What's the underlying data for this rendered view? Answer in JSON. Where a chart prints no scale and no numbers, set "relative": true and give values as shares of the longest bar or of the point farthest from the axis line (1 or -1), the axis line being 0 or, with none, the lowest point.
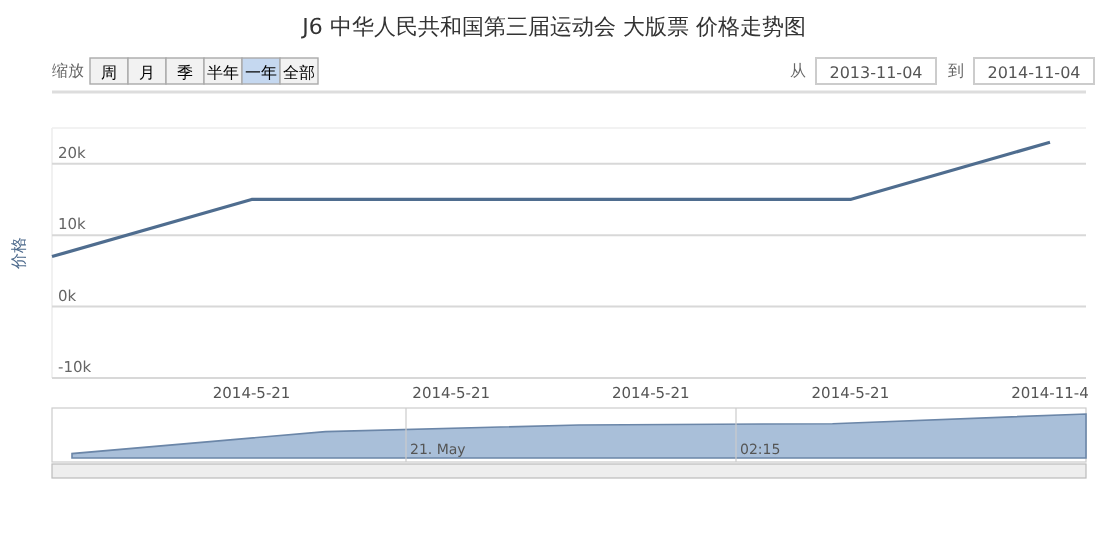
{
  "chart_data": [
    {
      "type": "line",
      "title": "J6 中华人民共和国第三届运动会 大版票 价格走势图",
      "ylabel": "价格",
      "categories": [
        null,
        "2014-5-21",
        "2014-5-21",
        "2014-5-21",
        "2014-5-21",
        "2014-11-4"
      ],
      "series": [
        {
          "color": "#4f6d8f",
          "values": [
            7000,
            15000,
            15000,
            15000,
            15000,
            23000
          ]
        }
      ],
      "ylim": [
        -10000,
        25000
      ],
      "yticks": [
        {
          "value": -10000,
          "label": "-10k"
        },
        {
          "value": 0,
          "label": "0k"
        },
        {
          "value": 10000,
          "label": "10k"
        },
        {
          "value": 20000,
          "label": "20k"
        }
      ],
      "grid": "y",
      "annotations": [
        "缩放",
        "周",
        "月",
        "季",
        "半年",
        "一年",
        "全部",
        "从",
        "2013-11-04",
        "到",
        "2014-11-04"
      ]
    },
    {
      "type": "area",
      "relative": true,
      "categories": [
        null,
        null,
        null,
        null,
        null
      ],
      "series": [
        {
          "color": "#a9bfd9",
          "values": [
            0.1,
            0.6,
            0.75,
            0.78,
            1
          ]
        }
      ],
      "annotations": [
        "21. May",
        "02:15"
      ]
    }
  ]
}
